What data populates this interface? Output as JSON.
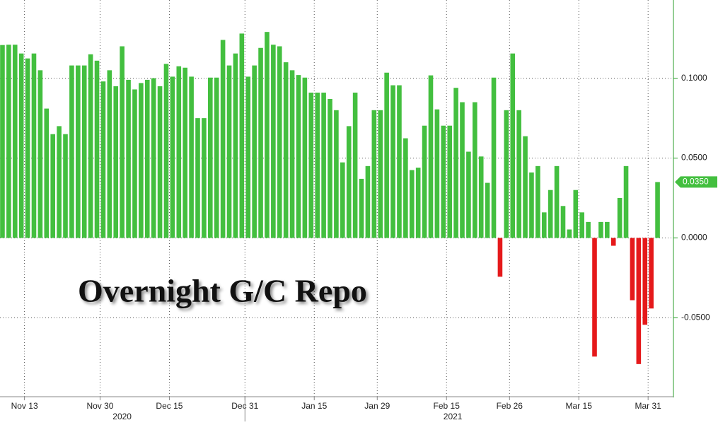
{
  "chart_data": {
    "type": "bar",
    "annotation": "Overnight G/C Repo",
    "categories": [
      null,
      null,
      null,
      null,
      "Nov 13",
      null,
      null,
      null,
      null,
      null,
      null,
      null,
      null,
      null,
      null,
      null,
      "Nov 30",
      null,
      null,
      null,
      null,
      null,
      null,
      null,
      null,
      null,
      null,
      "Dec 15",
      null,
      null,
      null,
      null,
      null,
      null,
      null,
      null,
      null,
      null,
      null,
      "Dec 31",
      null,
      null,
      null,
      null,
      null,
      null,
      null,
      null,
      null,
      null,
      "Jan 15",
      null,
      null,
      null,
      null,
      null,
      null,
      null,
      null,
      null,
      "Jan 29",
      null,
      null,
      null,
      null,
      null,
      null,
      null,
      null,
      null,
      null,
      "Feb 15",
      null,
      null,
      null,
      null,
      null,
      null,
      null,
      null,
      null,
      "Feb 26",
      null,
      null,
      null,
      null,
      null,
      null,
      null,
      null,
      null,
      null,
      "Mar 15",
      null,
      null,
      null,
      null,
      null,
      null,
      null,
      null,
      null,
      null,
      "Mar 31",
      null
    ],
    "values": [
      0.1208,
      0.121,
      0.121,
      0.1155,
      0.1124,
      0.1155,
      0.105,
      0.081,
      0.065,
      0.07,
      0.065,
      0.108,
      0.108,
      0.108,
      0.115,
      0.111,
      0.098,
      0.105,
      0.095,
      0.12,
      0.099,
      0.093,
      0.097,
      0.099,
      0.1,
      0.095,
      0.109,
      0.101,
      0.1075,
      0.1066,
      0.101,
      0.075,
      0.075,
      0.1004,
      0.1004,
      0.124,
      0.108,
      0.1155,
      0.128,
      0.101,
      0.108,
      0.119,
      0.129,
      0.121,
      0.12,
      0.11,
      0.105,
      0.102,
      0.1004,
      0.091,
      0.091,
      0.091,
      0.087,
      0.08,
      0.0473,
      0.07,
      0.091,
      0.037,
      0.045,
      0.08,
      0.08,
      0.1035,
      0.0956,
      0.0956,
      0.0624,
      0.0425,
      0.044,
      0.0703,
      0.1018,
      0.0805,
      0.0703,
      0.0703,
      0.094,
      0.085,
      0.054,
      0.085,
      0.051,
      0.0345,
      0.1004,
      -0.0243,
      0.08,
      0.1155,
      0.08,
      0.0637,
      0.041,
      0.045,
      0.016,
      0.03,
      0.045,
      0.02,
      0.0053,
      0.03,
      0.016,
      0.01,
      -0.0743,
      0.01,
      0.01,
      -0.0049,
      0.025,
      0.045,
      -0.039,
      -0.079,
      -0.0544,
      -0.0442,
      0.035
    ],
    "color": "#43bf3f",
    "negative_color": "#e5191b",
    "years": [
      {
        "label": "2020",
        "from": 0,
        "to": 39
      },
      {
        "label": "2021",
        "from": 39,
        "to": 105
      }
    ],
    "ylim": [
      -0.099,
      0.149
    ],
    "yticks": [
      {
        "value": -0.05,
        "label": "-0.0500"
      },
      {
        "value": 0,
        "label": "0.0000"
      },
      {
        "value": 0.05,
        "label": "0.0500"
      },
      {
        "value": 0.1,
        "label": "0.1000"
      }
    ],
    "last_value_label": {
      "value": 0.035,
      "label": "0.0350"
    },
    "grid": true
  }
}
